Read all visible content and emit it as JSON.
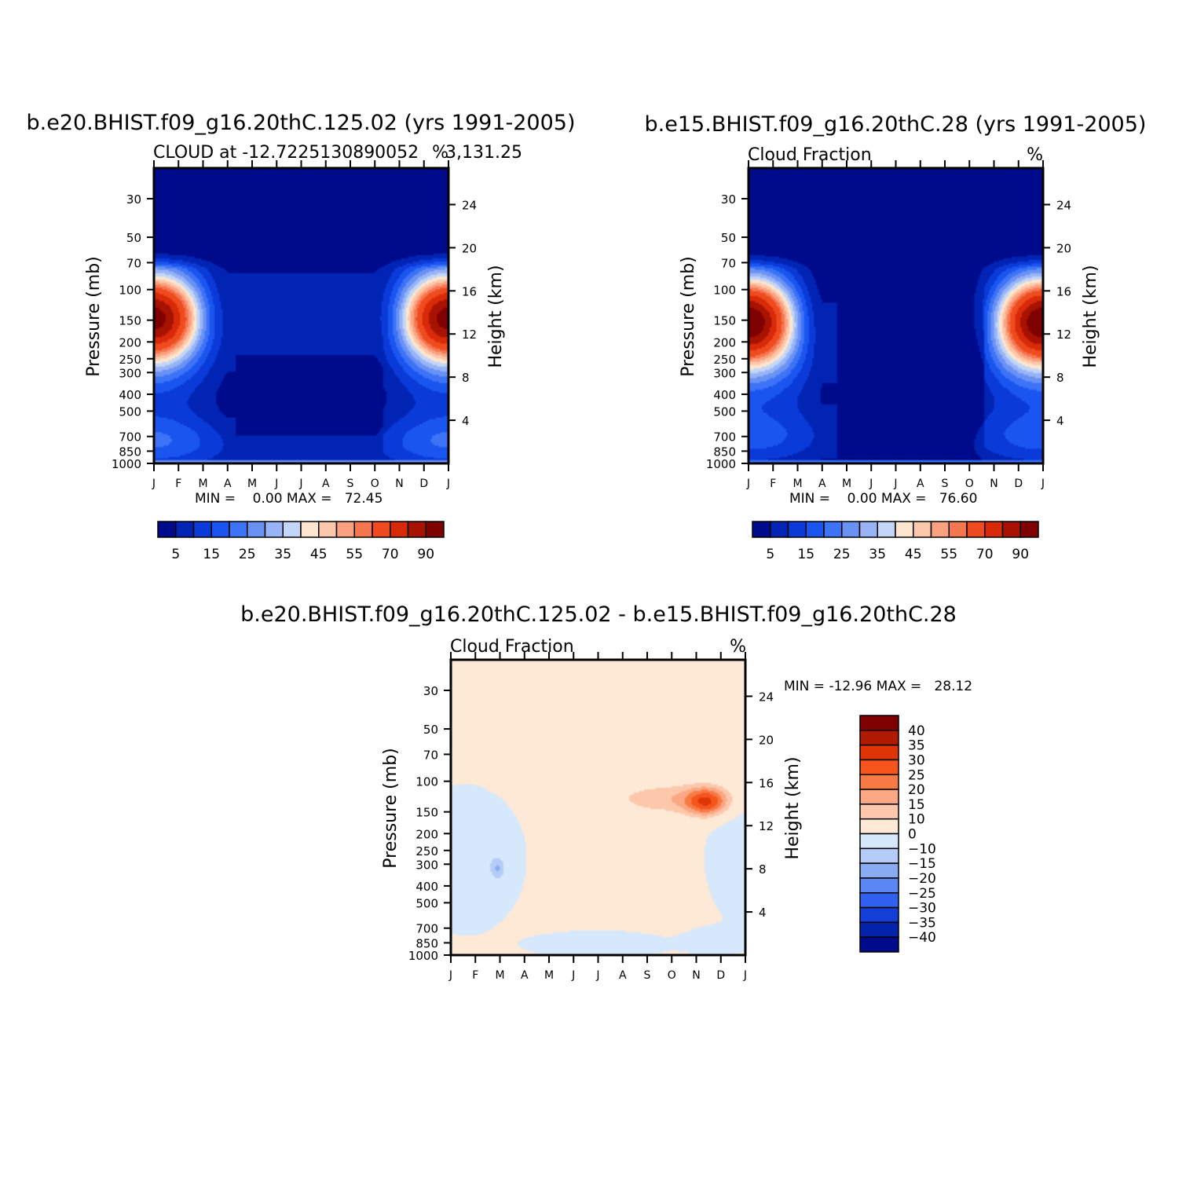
{
  "chart_data": [
    {
      "type": "heatmap",
      "panel": "left",
      "title": "b.e20.BHIST.f09_g16.20thC.125.02 (yrs 1991-2005)",
      "subtitle_left": "CLOUD at -12.7225130890052",
      "subtitle_right": "%",
      "subtitle_extra": "3,131.25",
      "ylabel": "Pressure (mb)",
      "ylabel_right": "Height (km)",
      "months": [
        "J",
        "F",
        "M",
        "A",
        "M",
        "J",
        "J",
        "A",
        "S",
        "O",
        "N",
        "D",
        "J"
      ],
      "pressure_ticks": [
        "30",
        "50",
        "70",
        "100",
        "150",
        "200",
        "250",
        "300",
        "400",
        "500",
        "700",
        "850",
        "1000"
      ],
      "pressure_values": [
        30,
        50,
        70,
        100,
        150,
        200,
        250,
        300,
        400,
        500,
        700,
        850,
        1000
      ],
      "height_ticks": [
        "24",
        "20",
        "16",
        "12",
        "8",
        "4"
      ],
      "height_values": [
        24,
        20,
        16,
        12,
        8,
        4
      ],
      "stats": "MIN =    0.00 MAX =   72.45",
      "min": 0.0,
      "max": 72.45,
      "colorbar_labels": [
        "5",
        "15",
        "25",
        "35",
        "45",
        "55",
        "70",
        "90"
      ],
      "colorbar_levels": [
        5,
        10,
        15,
        20,
        25,
        30,
        35,
        40,
        45,
        50,
        55,
        60,
        70,
        80,
        90
      ],
      "colorbar_colors": [
        "#000b8c",
        "#0224b5",
        "#0a3ad8",
        "#1a55f0",
        "#3d73f7",
        "#6a92f5",
        "#98b4f6",
        "#c3d6f8",
        "#fde6cf",
        "#fdc7ab",
        "#fba17f",
        "#f5764f",
        "#ef4b1f",
        "#d82a08",
        "#a81200",
        "#7f0000"
      ],
      "mode": "e20"
    },
    {
      "type": "heatmap",
      "panel": "right",
      "title": "b.e15.BHIST.f09_g16.20thC.28 (yrs 1991-2005)",
      "subtitle_left": "Cloud Fraction",
      "subtitle_right": "%",
      "ylabel": "Pressure (mb)",
      "ylabel_right": "Height (km)",
      "months": [
        "J",
        "F",
        "M",
        "A",
        "M",
        "J",
        "J",
        "A",
        "S",
        "O",
        "N",
        "D",
        "J"
      ],
      "pressure_ticks": [
        "30",
        "50",
        "70",
        "100",
        "150",
        "200",
        "250",
        "300",
        "400",
        "500",
        "700",
        "850",
        "1000"
      ],
      "pressure_values": [
        30,
        50,
        70,
        100,
        150,
        200,
        250,
        300,
        400,
        500,
        700,
        850,
        1000
      ],
      "height_ticks": [
        "24",
        "20",
        "16",
        "12",
        "8",
        "4"
      ],
      "height_values": [
        24,
        20,
        16,
        12,
        8,
        4
      ],
      "stats": "MIN =    0.00 MAX =   76.60",
      "min": 0.0,
      "max": 76.6,
      "colorbar_labels": [
        "5",
        "15",
        "25",
        "35",
        "45",
        "55",
        "70",
        "90"
      ],
      "colorbar_levels": [
        5,
        10,
        15,
        20,
        25,
        30,
        35,
        40,
        45,
        50,
        55,
        60,
        70,
        80,
        90
      ],
      "colorbar_colors": [
        "#000b8c",
        "#0224b5",
        "#0a3ad8",
        "#1a55f0",
        "#3d73f7",
        "#6a92f5",
        "#98b4f6",
        "#c3d6f8",
        "#fde6cf",
        "#fdc7ab",
        "#fba17f",
        "#f5764f",
        "#ef4b1f",
        "#d82a08",
        "#a81200",
        "#7f0000"
      ],
      "mode": "e15"
    },
    {
      "type": "heatmap",
      "panel": "diff",
      "title": "b.e20.BHIST.f09_g16.20thC.125.02 - b.e15.BHIST.f09_g16.20thC.28",
      "subtitle_left": "Cloud Fraction",
      "subtitle_right": "%",
      "ylabel": "Pressure (mb)",
      "ylabel_right": "Height (km)",
      "months": [
        "J",
        "F",
        "M",
        "A",
        "M",
        "J",
        "J",
        "A",
        "S",
        "O",
        "N",
        "D",
        "J"
      ],
      "pressure_ticks": [
        "30",
        "50",
        "70",
        "100",
        "150",
        "200",
        "250",
        "300",
        "400",
        "500",
        "700",
        "850",
        "1000"
      ],
      "pressure_values": [
        30,
        50,
        70,
        100,
        150,
        200,
        250,
        300,
        400,
        500,
        700,
        850,
        1000
      ],
      "height_ticks": [
        "24",
        "20",
        "16",
        "12",
        "8",
        "4"
      ],
      "height_values": [
        24,
        20,
        16,
        12,
        8,
        4
      ],
      "stats": "MIN = -12.96 MAX =   28.12",
      "min": -12.96,
      "max": 28.12,
      "colorbar_labels": [
        "40",
        "35",
        "30",
        "25",
        "20",
        "15",
        "10",
        "0",
        "-10",
        "-15",
        "-20",
        "-25",
        "-30",
        "-35",
        "-40"
      ],
      "colorbar_colors": [
        "#7f0000",
        "#b01a00",
        "#df3405",
        "#f5541c",
        "#f77a45",
        "#fba783",
        "#fdc7ab",
        "#fee8d6",
        "#d6e8fb",
        "#b4ccf7",
        "#8aaaf4",
        "#5a86f3",
        "#2f60ee",
        "#1240d6",
        "#0423ad",
        "#000b8c"
      ],
      "mode": "diff"
    }
  ]
}
